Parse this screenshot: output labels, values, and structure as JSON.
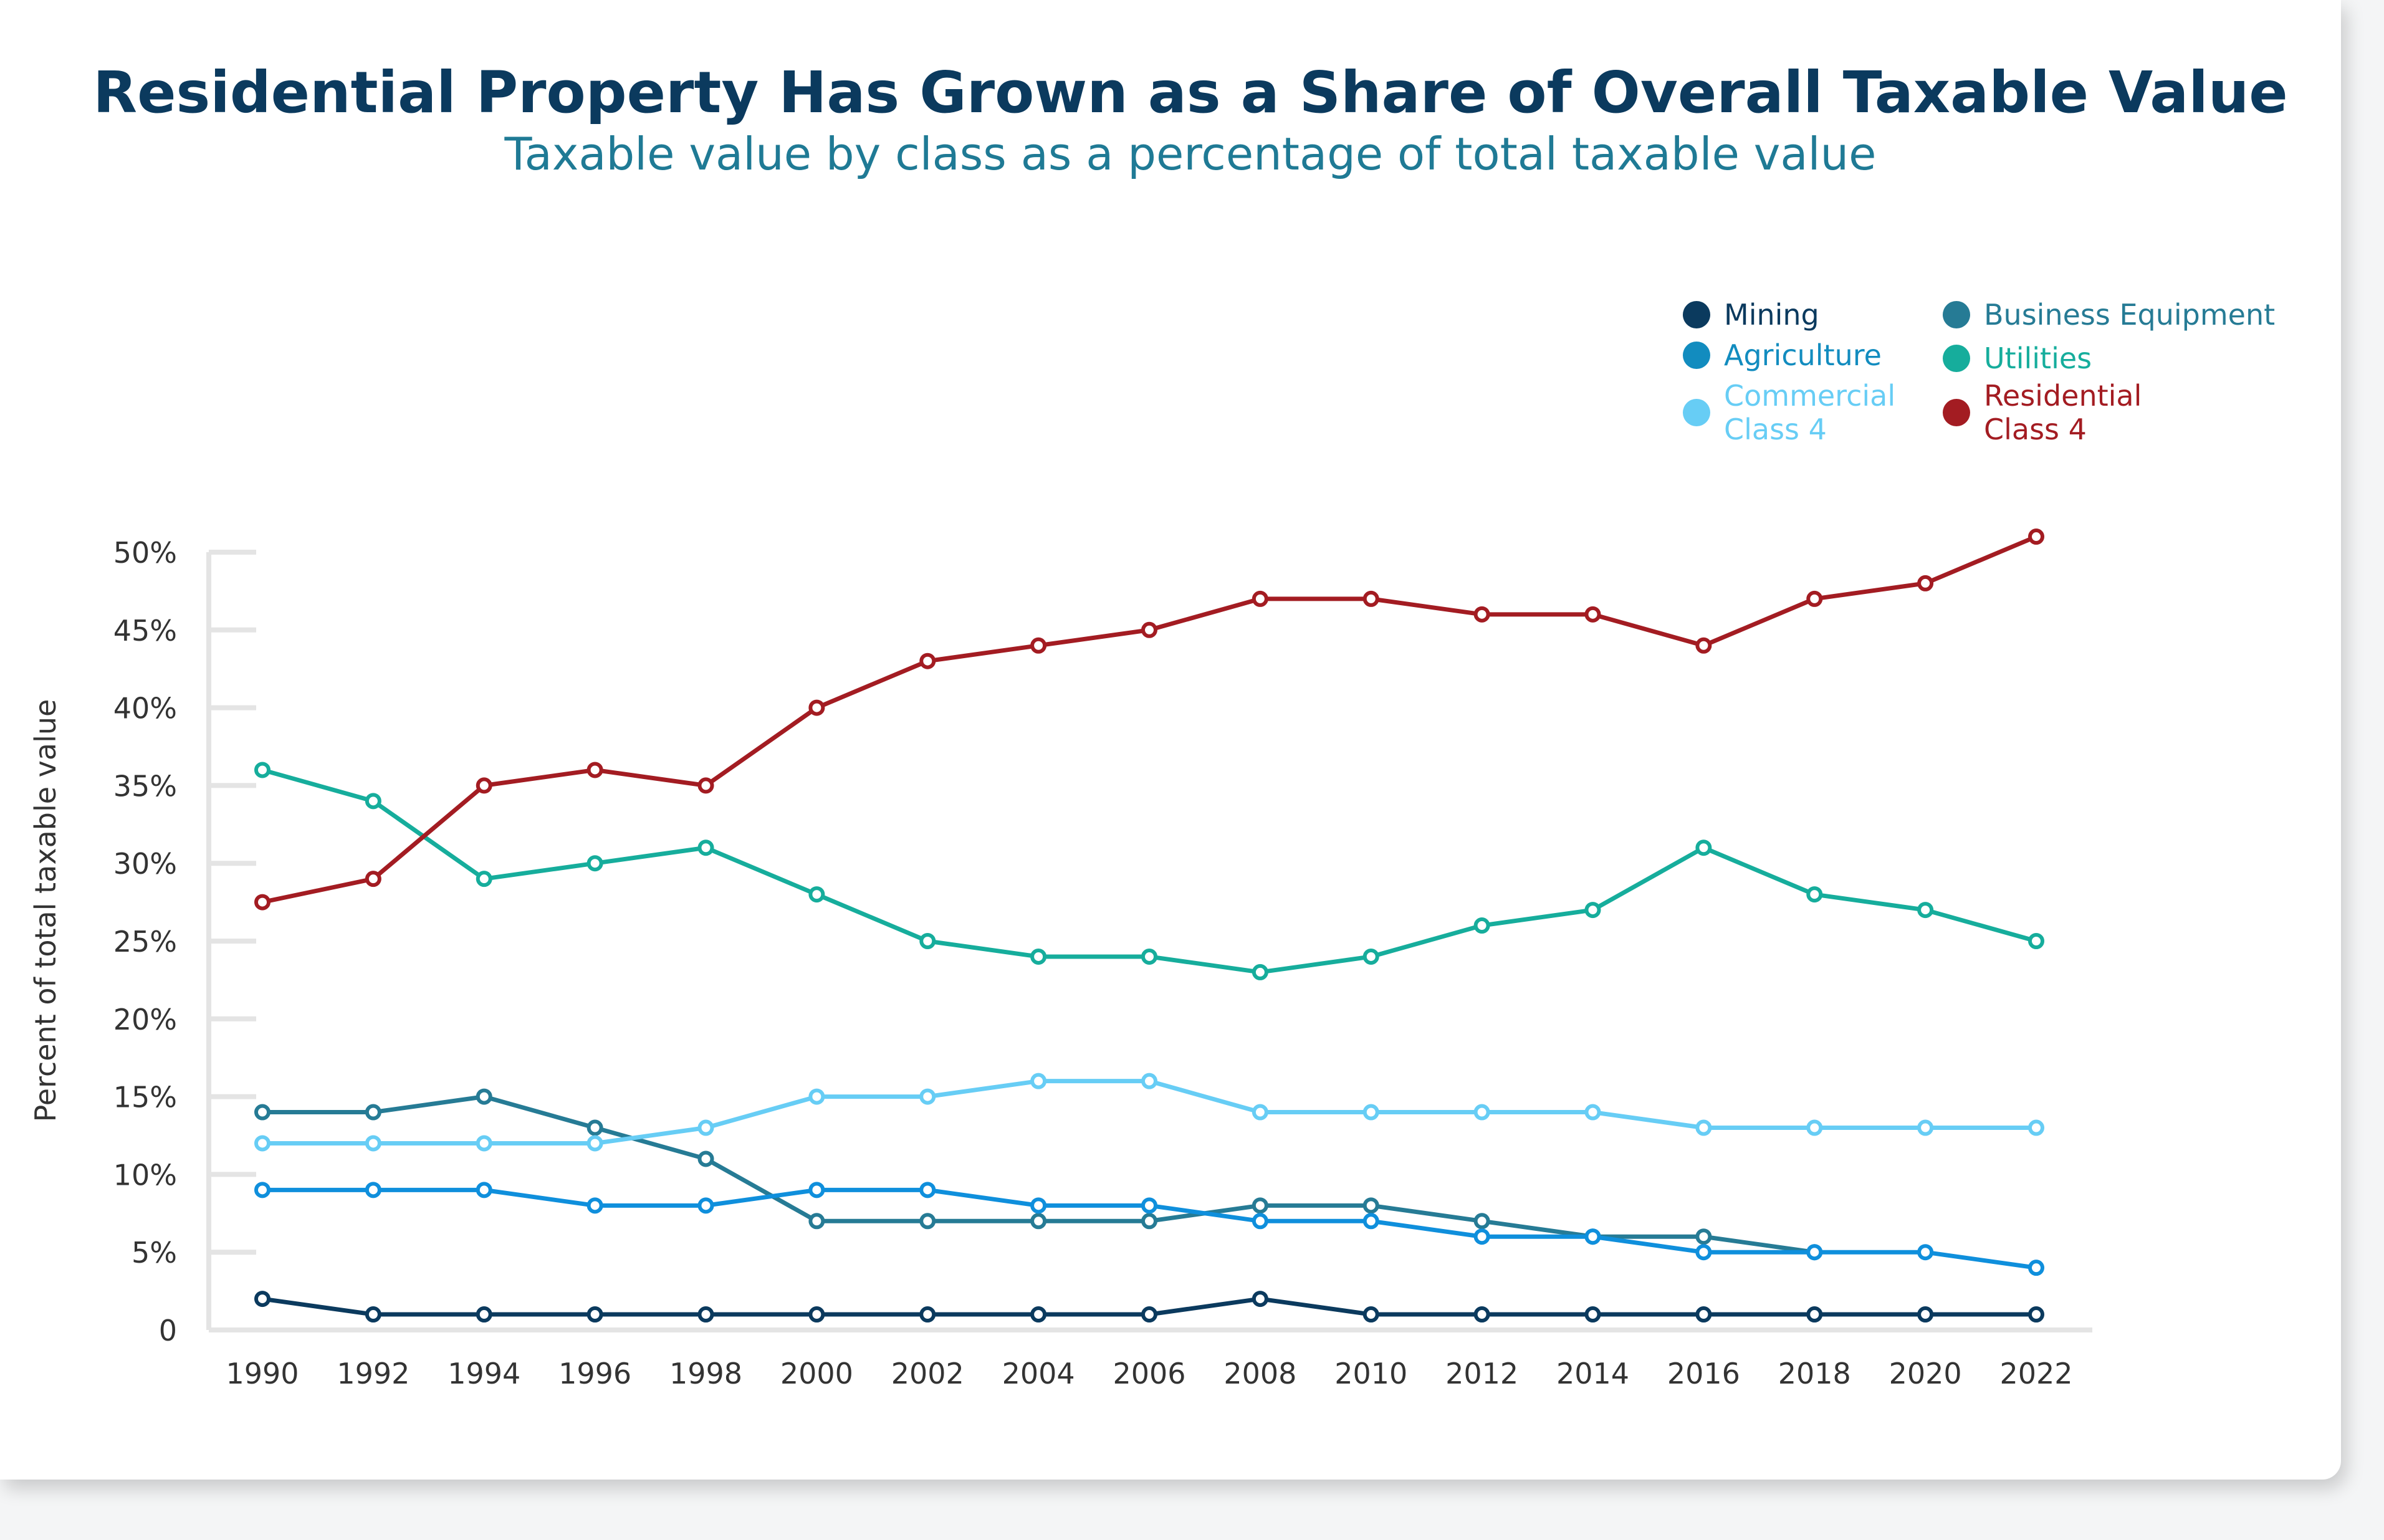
{
  "chart_data": {
    "type": "line",
    "title": "Residential Property Has Grown as a Share of Overall Taxable Value",
    "subtitle": "Taxable value by class as a percentage of total taxable value",
    "xlabel": "",
    "ylabel": "Percent of total taxable value",
    "ylim": [
      0,
      50
    ],
    "yticks": [
      "0",
      "5%",
      "10%",
      "15%",
      "20%",
      "25%",
      "30%",
      "35%",
      "40%",
      "45%",
      "50%"
    ],
    "x": [
      1990,
      1992,
      1994,
      1996,
      1998,
      2000,
      2002,
      2004,
      2006,
      2008,
      2010,
      2012,
      2014,
      2016,
      2018,
      2020,
      2022
    ],
    "legend_position": "top-right",
    "grid": false,
    "series": [
      {
        "name": "Mining",
        "color": "#0b3a5e",
        "values": [
          2,
          1,
          1,
          1,
          1,
          1,
          1,
          1,
          1,
          2,
          1,
          1,
          1,
          1,
          1,
          1,
          1
        ]
      },
      {
        "name": "Business Equipment",
        "color": "#267b95",
        "values": [
          14,
          14,
          15,
          13,
          11,
          7,
          7,
          7,
          7,
          8,
          8,
          7,
          6,
          6,
          5,
          null,
          null
        ]
      },
      {
        "name": "Agriculture",
        "color": "#0f8fdc",
        "legend_color": "#128cbf",
        "values": [
          9,
          9,
          9,
          8,
          8,
          9,
          9,
          8,
          8,
          7,
          7,
          6,
          6,
          5,
          5,
          5,
          4
        ]
      },
      {
        "name": "Utilities",
        "color": "#16ad9c",
        "values": [
          36,
          34,
          29,
          30,
          31,
          28,
          25,
          24,
          24,
          23,
          24,
          26,
          27,
          31,
          28,
          27,
          25
        ]
      },
      {
        "name": "Commercial Class 4",
        "color": "#67cdf5",
        "values": [
          12,
          12,
          12,
          12,
          13,
          15,
          15,
          16,
          16,
          14,
          14,
          14,
          14,
          13,
          13,
          13,
          13
        ]
      },
      {
        "name": "Residential Class 4",
        "color": "#a31c22",
        "values": [
          27.5,
          29,
          35,
          36,
          35,
          40,
          43,
          44,
          45,
          47,
          47,
          46,
          46,
          44,
          47,
          48,
          51
        ]
      }
    ]
  },
  "legend": [
    {
      "lines": [
        "Mining"
      ],
      "color": "#0b3a5e"
    },
    {
      "lines": [
        "Agriculture"
      ],
      "color": "#128cbf"
    },
    {
      "lines": [
        "Commercial",
        "Class 4"
      ],
      "color": "#67cdf5"
    },
    {
      "lines": [
        "Business Equipment"
      ],
      "color": "#267b95"
    },
    {
      "lines": [
        "Utilities"
      ],
      "color": "#16ad9c"
    },
    {
      "lines": [
        "Residential",
        "Class 4"
      ],
      "color": "#a31c22"
    }
  ]
}
